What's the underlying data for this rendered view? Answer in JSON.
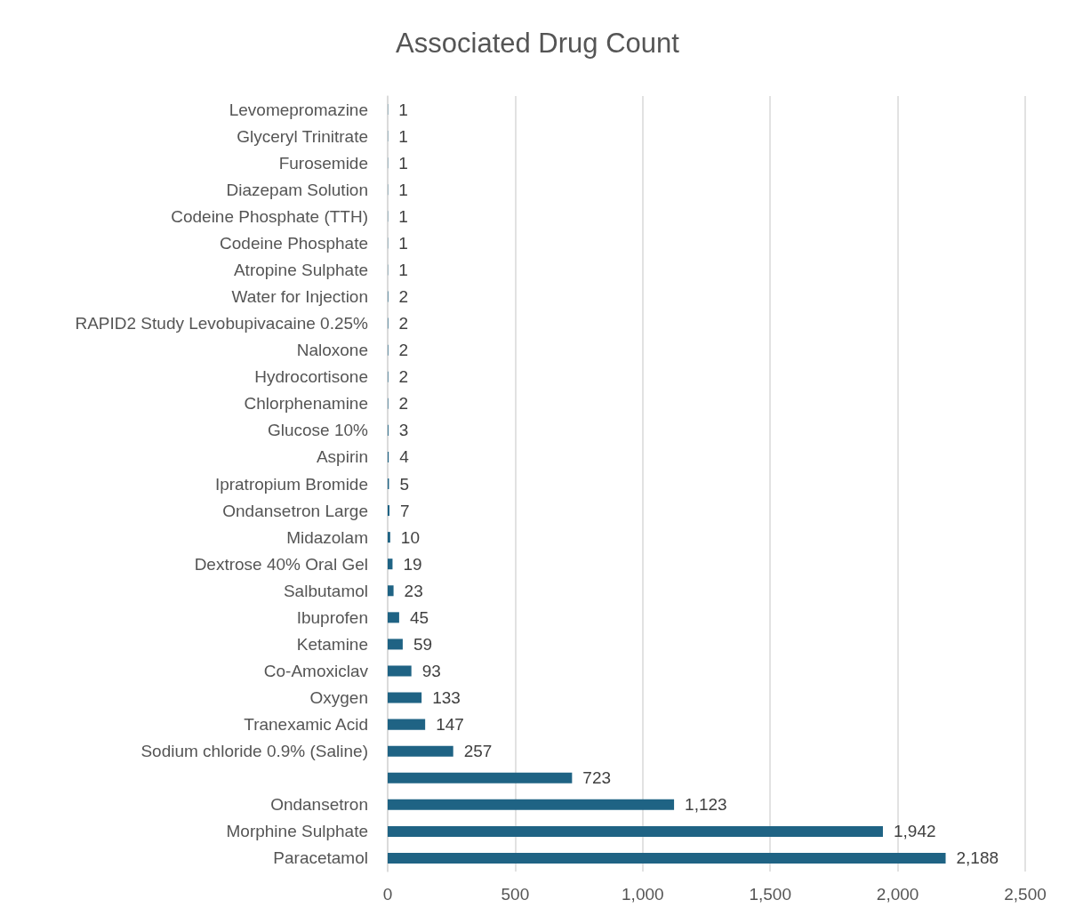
{
  "chart_data": {
    "type": "bar",
    "orientation": "horizontal",
    "title": "Associated Drug Count",
    "categories": [
      "Levomepromazine",
      "Glyceryl Trinitrate",
      "Furosemide",
      "Diazepam Solution",
      "Codeine Phosphate (TTH)",
      "Codeine Phosphate",
      "Atropine Sulphate",
      "Water for Injection",
      "RAPID2 Study Levobupivacaine 0.25%",
      "Naloxone",
      "Hydrocortisone",
      "Chlorphenamine",
      "Glucose 10%",
      "Aspirin",
      "Ipratropium Bromide",
      "Ondansetron Large",
      "Midazolam",
      "Dextrose 40% Oral Gel",
      "Salbutamol",
      "Ibuprofen",
      "Ketamine",
      "Co-Amoxiclav",
      "Oxygen",
      "Tranexamic Acid",
      "Sodium chloride 0.9% (Saline)",
      null,
      "Ondansetron",
      "Morphine Sulphate",
      "Paracetamol"
    ],
    "values": [
      1,
      1,
      1,
      1,
      1,
      1,
      1,
      2,
      2,
      2,
      2,
      2,
      3,
      4,
      5,
      7,
      10,
      19,
      23,
      45,
      59,
      93,
      133,
      147,
      257,
      723,
      1123,
      1942,
      2188
    ],
    "value_labels": [
      "1",
      "1",
      "1",
      "1",
      "1",
      "1",
      "1",
      "2",
      "2",
      "2",
      "2",
      "2",
      "3",
      "4",
      "5",
      "7",
      "10",
      "19",
      "23",
      "45",
      "59",
      "93",
      "133",
      "147",
      "257",
      "723",
      "1,123",
      "1,942",
      "2,188"
    ],
    "color": "#1f6384",
    "xlim": [
      0,
      2500
    ],
    "xticks": [
      0,
      500,
      {
        "value": 1000,
        "label": "1,000"
      },
      {
        "value": 1500,
        "label": "1,500"
      },
      {
        "value": 2000,
        "label": "2,000"
      },
      {
        "value": 2500,
        "label": "2,500"
      }
    ],
    "grid": "x"
  }
}
